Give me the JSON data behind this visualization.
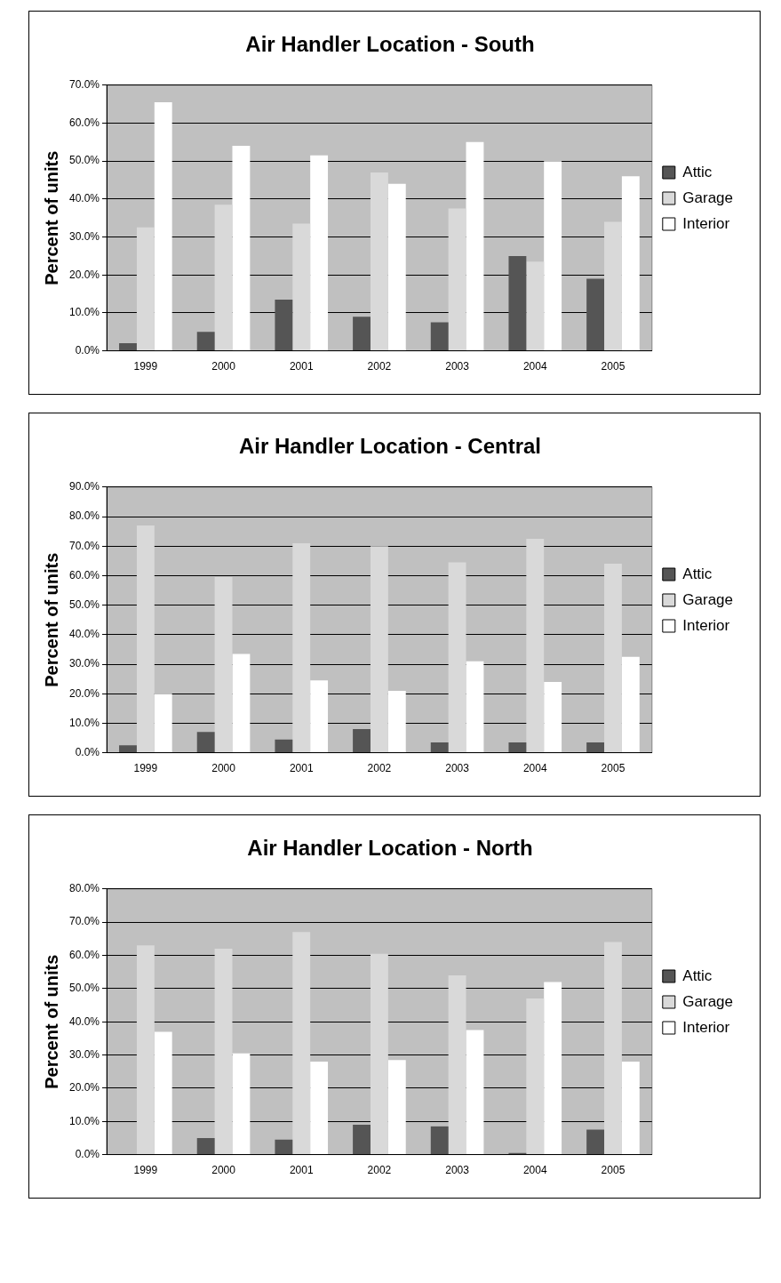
{
  "chart_data": [
    {
      "type": "bar",
      "title": "Air Handler Location - South",
      "ylabel": "Percent of units",
      "categories": [
        "1999",
        "2000",
        "2001",
        "2002",
        "2003",
        "2004",
        "2005"
      ],
      "series": [
        {
          "name": "Attic",
          "color": "#555555",
          "values": [
            2,
            5,
            13.5,
            9,
            7.5,
            25,
            19
          ]
        },
        {
          "name": "Garage",
          "color": "#d9d9d9",
          "values": [
            32.5,
            38.5,
            33.5,
            47,
            37.5,
            23.5,
            34
          ]
        },
        {
          "name": "Interior",
          "color": "#ffffff",
          "values": [
            65.5,
            54,
            51.5,
            44,
            55,
            50,
            46
          ]
        }
      ],
      "ylim": [
        0,
        70
      ],
      "yticks": [
        {
          "value": 0,
          "label": "0.0%"
        },
        {
          "value": 10,
          "label": "10.0%"
        },
        {
          "value": 20,
          "label": "20.0%"
        },
        {
          "value": 30,
          "label": "30.0%"
        },
        {
          "value": 40,
          "label": "40.0%"
        },
        {
          "value": 50,
          "label": "50.0%"
        },
        {
          "value": 60,
          "label": "60.0%"
        },
        {
          "value": 70,
          "label": "70.0%"
        }
      ],
      "grid": "y",
      "legend": "right"
    },
    {
      "type": "bar",
      "title": "Air Handler Location - Central",
      "ylabel": "Percent of units",
      "categories": [
        "1999",
        "2000",
        "2001",
        "2002",
        "2003",
        "2004",
        "2005"
      ],
      "series": [
        {
          "name": "Attic",
          "color": "#555555",
          "values": [
            2.5,
            7,
            4.5,
            8,
            3.5,
            3.5,
            3.5
          ]
        },
        {
          "name": "Garage",
          "color": "#d9d9d9",
          "values": [
            77,
            59.5,
            71,
            70,
            64.5,
            72.5,
            64
          ]
        },
        {
          "name": "Interior",
          "color": "#ffffff",
          "values": [
            20,
            33.5,
            24.5,
            21,
            31,
            24,
            32.5
          ]
        }
      ],
      "ylim": [
        0,
        90
      ],
      "yticks": [
        {
          "value": 0,
          "label": "0.0%"
        },
        {
          "value": 10,
          "label": "10.0%"
        },
        {
          "value": 20,
          "label": "20.0%"
        },
        {
          "value": 30,
          "label": "30.0%"
        },
        {
          "value": 40,
          "label": "40.0%"
        },
        {
          "value": 50,
          "label": "50.0%"
        },
        {
          "value": 60,
          "label": "60.0%"
        },
        {
          "value": 70,
          "label": "70.0%"
        },
        {
          "value": 80,
          "label": "80.0%"
        },
        {
          "value": 90,
          "label": "90.0%"
        }
      ],
      "grid": "y",
      "legend": "right"
    },
    {
      "type": "bar",
      "title": "Air Handler Location - North",
      "ylabel": "Percent of units",
      "categories": [
        "1999",
        "2000",
        "2001",
        "2002",
        "2003",
        "2004",
        "2005"
      ],
      "series": [
        {
          "name": "Attic",
          "color": "#555555",
          "values": [
            0,
            5,
            4.5,
            9,
            8.5,
            0.5,
            7.5
          ]
        },
        {
          "name": "Garage",
          "color": "#d9d9d9",
          "values": [
            63,
            62,
            67,
            60.5,
            54,
            47,
            64
          ]
        },
        {
          "name": "Interior",
          "color": "#ffffff",
          "values": [
            37,
            30.5,
            28,
            28.5,
            37.5,
            52,
            28
          ]
        }
      ],
      "ylim": [
        0,
        80
      ],
      "yticks": [
        {
          "value": 0,
          "label": "0.0%"
        },
        {
          "value": 10,
          "label": "10.0%"
        },
        {
          "value": 20,
          "label": "20.0%"
        },
        {
          "value": 30,
          "label": "30.0%"
        },
        {
          "value": 40,
          "label": "40.0%"
        },
        {
          "value": 50,
          "label": "50.0%"
        },
        {
          "value": 60,
          "label": "60.0%"
        },
        {
          "value": 70,
          "label": "70.0%"
        },
        {
          "value": 80,
          "label": "80.0%"
        }
      ],
      "grid": "y",
      "legend": "right"
    }
  ]
}
